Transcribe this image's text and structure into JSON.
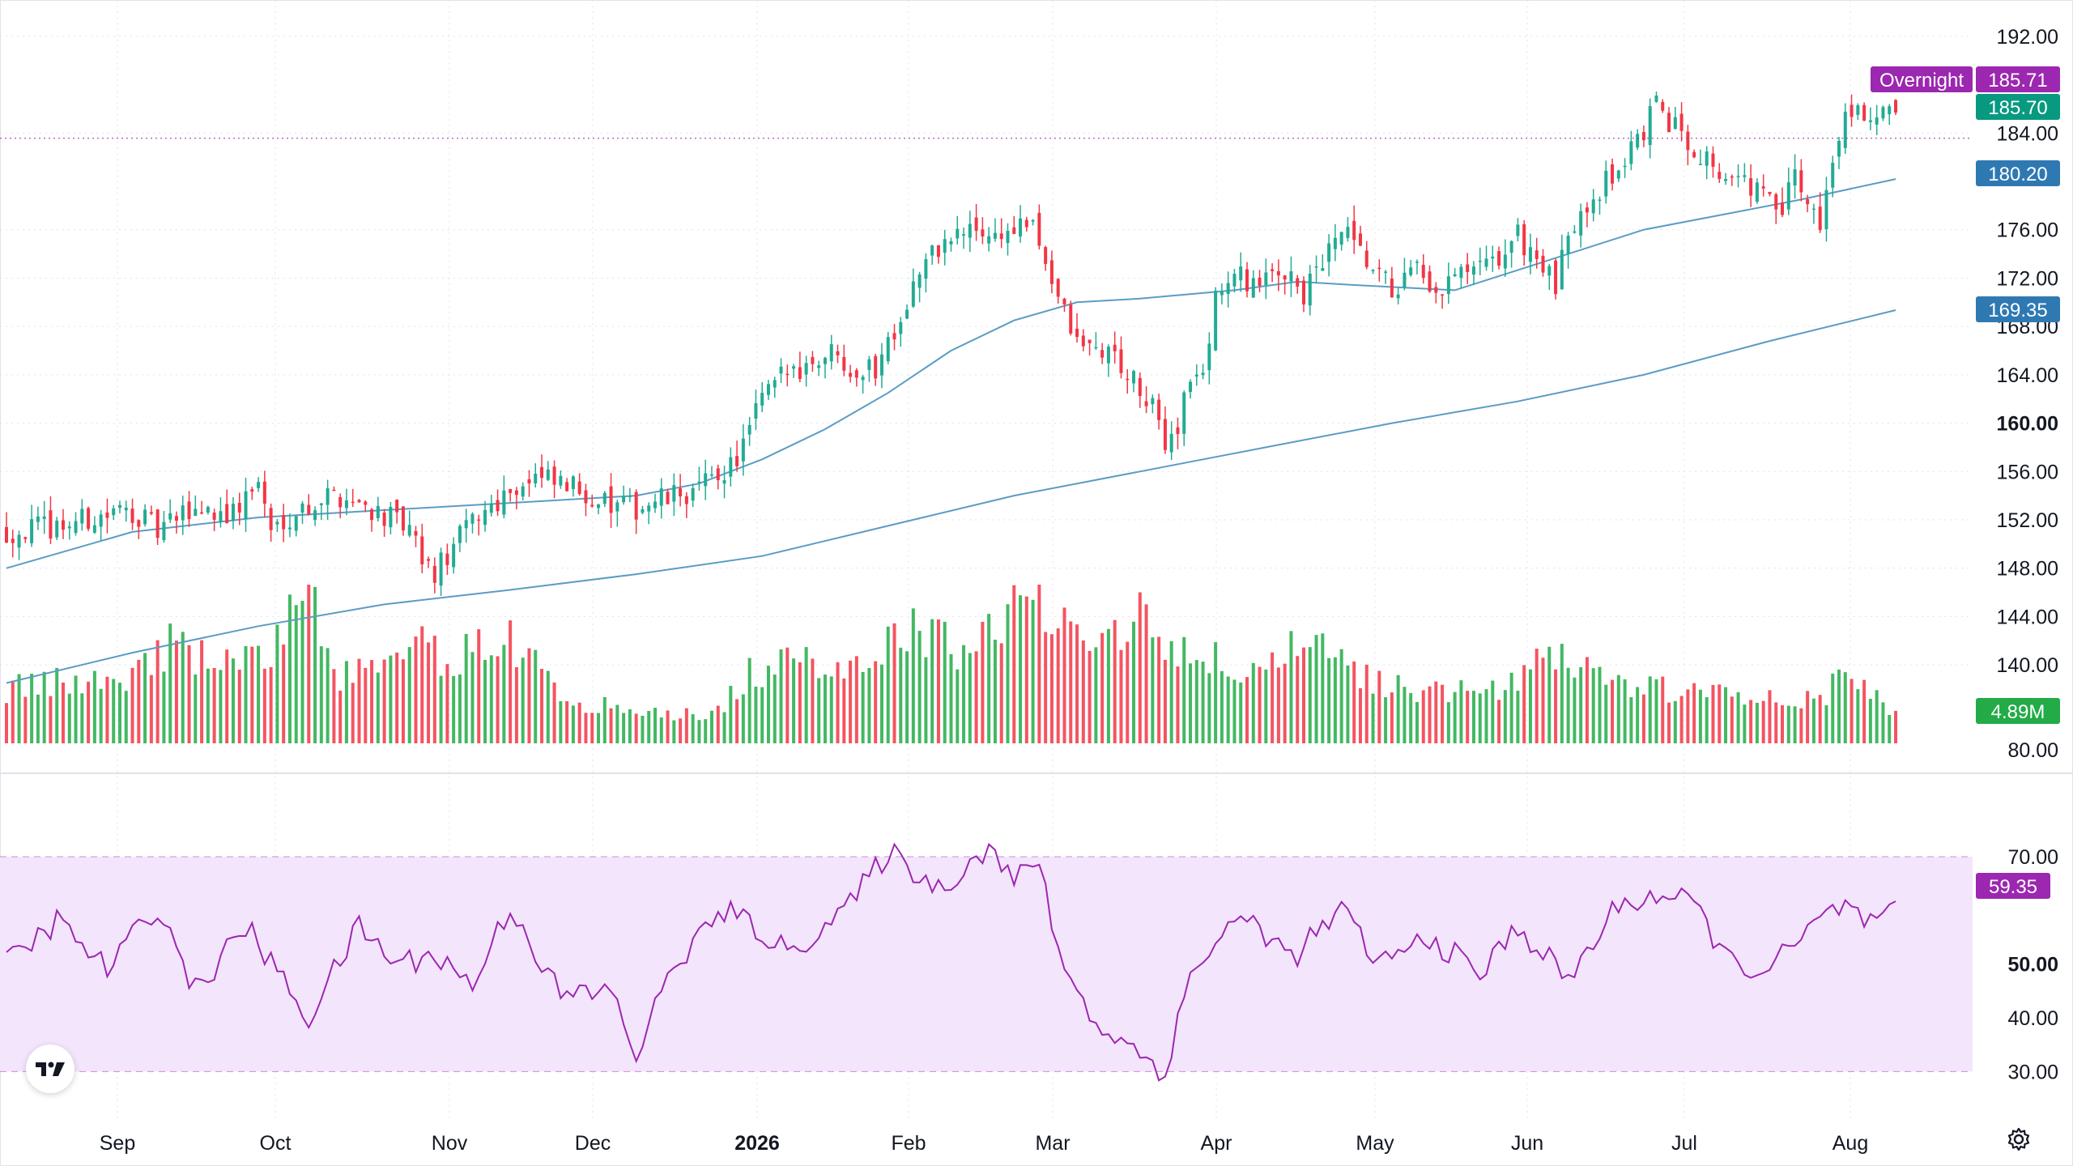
{
  "chart_data": [
    {
      "type": "candlestick",
      "x_months": [
        "Sep",
        "Oct",
        "Nov",
        "Dec",
        "2026",
        "Feb",
        "Mar",
        "Apr",
        "May",
        "Jun",
        "Jul",
        "Aug"
      ],
      "y_ticks": [
        {
          "value": 192,
          "label": "192.00"
        },
        {
          "value": 184,
          "label": "184.00"
        },
        {
          "value": 176,
          "label": "176.00"
        },
        {
          "value": 172,
          "label": "172.00"
        },
        {
          "value": 168,
          "label": "168.00"
        },
        {
          "value": 164,
          "label": "164.00"
        },
        {
          "value": 160,
          "label": "160.00"
        },
        {
          "value": 156,
          "label": "156.00"
        },
        {
          "value": 152,
          "label": "152.00"
        },
        {
          "value": 148,
          "label": "148.00"
        },
        {
          "value": 144,
          "label": "144.00"
        },
        {
          "value": 140,
          "label": "140.00"
        }
      ],
      "ylim": [
        139,
        193
      ],
      "grid": true,
      "close_path": [
        [
          0,
          151.0
        ],
        [
          8,
          151.5
        ],
        [
          20,
          152.8
        ],
        [
          24,
          151.0
        ],
        [
          30,
          153.0
        ],
        [
          36,
          152.5
        ],
        [
          40,
          155.2
        ],
        [
          42,
          151.0
        ],
        [
          44,
          152.2
        ],
        [
          52,
          154.2
        ],
        [
          58,
          153.0
        ],
        [
          64,
          151.0
        ],
        [
          66,
          148.5
        ],
        [
          68,
          147.5
        ],
        [
          74,
          152.0
        ],
        [
          80,
          154.6
        ],
        [
          84,
          155.4
        ],
        [
          92,
          154.3
        ],
        [
          96,
          153.0
        ],
        [
          100,
          153.0
        ],
        [
          110,
          154.5
        ],
        [
          116,
          157.0
        ],
        [
          118,
          159.5
        ],
        [
          120,
          162.0
        ],
        [
          124,
          164.3
        ],
        [
          128,
          165.2
        ],
        [
          132,
          166.2
        ],
        [
          134,
          164.5
        ],
        [
          138,
          164.5
        ],
        [
          140,
          167.0
        ],
        [
          142,
          169.0
        ],
        [
          145,
          172.5
        ],
        [
          148,
          174.5
        ],
        [
          151,
          175.5
        ],
        [
          154,
          176.0
        ],
        [
          157,
          175.5
        ],
        [
          160,
          176.0
        ],
        [
          162,
          176.5
        ],
        [
          164,
          175.0
        ],
        [
          166,
          172.0
        ],
        [
          168,
          169.0
        ],
        [
          170,
          166.5
        ],
        [
          174,
          166.0
        ],
        [
          176,
          165.5
        ],
        [
          178,
          164.0
        ],
        [
          182,
          161.0
        ],
        [
          184,
          158.5
        ],
        [
          186,
          160.0
        ],
        [
          188,
          164.0
        ],
        [
          190,
          163.5
        ],
        [
          192,
          171.0
        ],
        [
          196,
          172.0
        ],
        [
          200,
          171.5
        ],
        [
          204,
          173.0
        ],
        [
          206,
          170.5
        ],
        [
          208,
          172.5
        ],
        [
          210,
          174.0
        ],
        [
          212,
          176.0
        ],
        [
          216,
          173.0
        ],
        [
          220,
          171.0
        ],
        [
          224,
          172.5
        ],
        [
          226,
          170.0
        ],
        [
          230,
          172.0
        ],
        [
          236,
          173.0
        ],
        [
          240,
          175.5
        ],
        [
          244,
          173.0
        ],
        [
          246,
          171.0
        ],
        [
          248,
          175.5
        ],
        [
          250,
          178.0
        ],
        [
          256,
          181.0
        ],
        [
          262,
          186.0
        ],
        [
          266,
          184.0
        ],
        [
          270,
          182.0
        ],
        [
          274,
          180.0
        ],
        [
          278,
          179.5
        ],
        [
          282,
          177.0
        ],
        [
          284,
          181.0
        ],
        [
          286,
          178.0
        ],
        [
          288,
          177.0
        ],
        [
          290,
          181.0
        ],
        [
          292,
          186.0
        ],
        [
          294,
          186.5
        ],
        [
          296,
          185.0
        ],
        [
          300,
          185.7
        ]
      ],
      "up_color": "#22ab94",
      "down_color": "#f23645"
    },
    {
      "type": "line",
      "series": [
        {
          "values": [
            [
              0,
              148.0
            ],
            [
              20,
              151.0
            ],
            [
              40,
              152.2
            ],
            [
              60,
              152.8
            ],
            [
              80,
              153.4
            ],
            [
              100,
              154.0
            ],
            [
              110,
              155.0
            ],
            [
              120,
              157.0
            ],
            [
              130,
              159.5
            ],
            [
              140,
              162.5
            ],
            [
              150,
              166.0
            ],
            [
              160,
              168.5
            ],
            [
              170,
              170.0
            ],
            [
              180,
              170.3
            ],
            [
              195,
              171.0
            ],
            [
              205,
              171.7
            ],
            [
              215,
              171.4
            ],
            [
              230,
              171.0
            ],
            [
              245,
              173.5
            ],
            [
              260,
              176.0
            ],
            [
              275,
              177.5
            ],
            [
              285,
              178.5
            ],
            [
              300,
              180.2
            ]
          ],
          "color": "#5b9cc4"
        },
        {
          "values": [
            [
              0,
              138.5
            ],
            [
              20,
              141.0
            ],
            [
              40,
              143.2
            ],
            [
              60,
              145.0
            ],
            [
              80,
              146.2
            ],
            [
              100,
              147.5
            ],
            [
              120,
              149.0
            ],
            [
              140,
              151.5
            ],
            [
              160,
              154.0
            ],
            [
              180,
              156.0
            ],
            [
              200,
              158.0
            ],
            [
              220,
              160.0
            ],
            [
              240,
              161.8
            ],
            [
              260,
              164.0
            ],
            [
              280,
              166.8
            ],
            [
              300,
              169.35
            ]
          ],
          "color": "#5b9cc4"
        }
      ]
    },
    {
      "type": "bar",
      "name": "volume",
      "last_value_label": "4.89M",
      "hints": [
        [
          0,
          0.35
        ],
        [
          10,
          0.4
        ],
        [
          20,
          0.45
        ],
        [
          26,
          0.65
        ],
        [
          30,
          0.55
        ],
        [
          40,
          0.52
        ],
        [
          48,
          1.0
        ],
        [
          52,
          0.45
        ],
        [
          60,
          0.48
        ],
        [
          66,
          0.62
        ],
        [
          70,
          0.55
        ],
        [
          80,
          0.7
        ],
        [
          88,
          0.3
        ],
        [
          100,
          0.2
        ],
        [
          112,
          0.18
        ],
        [
          118,
          0.45
        ],
        [
          126,
          0.52
        ],
        [
          136,
          0.55
        ],
        [
          144,
          0.75
        ],
        [
          150,
          0.62
        ],
        [
          160,
          0.85
        ],
        [
          166,
          0.95
        ],
        [
          172,
          0.72
        ],
        [
          180,
          0.82
        ],
        [
          190,
          0.55
        ],
        [
          200,
          0.45
        ],
        [
          206,
          0.65
        ],
        [
          214,
          0.45
        ],
        [
          220,
          0.38
        ],
        [
          230,
          0.32
        ],
        [
          240,
          0.38
        ],
        [
          246,
          0.62
        ],
        [
          256,
          0.38
        ],
        [
          270,
          0.32
        ],
        [
          280,
          0.3
        ],
        [
          288,
          0.3
        ],
        [
          292,
          0.42
        ],
        [
          296,
          0.3
        ],
        [
          300,
          0.2
        ]
      ]
    },
    {
      "type": "line",
      "name": "rsi",
      "y_ticks": [
        {
          "value": 70,
          "label": "70.00"
        },
        {
          "value": 50,
          "label": "50.00"
        },
        {
          "value": 40,
          "label": "40.00"
        },
        {
          "value": 30,
          "label": "30.00"
        }
      ],
      "band": [
        30,
        70
      ],
      "ylim": [
        29,
        78
      ],
      "hints": [
        [
          0,
          50
        ],
        [
          8,
          58
        ],
        [
          16,
          49
        ],
        [
          24,
          61
        ],
        [
          30,
          45
        ],
        [
          38,
          57
        ],
        [
          48,
          40
        ],
        [
          56,
          57
        ],
        [
          62,
          50
        ],
        [
          68,
          52
        ],
        [
          74,
          46
        ],
        [
          80,
          61
        ],
        [
          88,
          44
        ],
        [
          96,
          45
        ],
        [
          100,
          33
        ],
        [
          106,
          50
        ],
        [
          114,
          60
        ],
        [
          120,
          56
        ],
        [
          124,
          52
        ],
        [
          134,
          61
        ],
        [
          140,
          71
        ],
        [
          148,
          64
        ],
        [
          156,
          72
        ],
        [
          160,
          65
        ],
        [
          164,
          70
        ],
        [
          166,
          56
        ],
        [
          172,
          40
        ],
        [
          178,
          35
        ],
        [
          184,
          30
        ],
        [
          188,
          48
        ],
        [
          194,
          57
        ],
        [
          198,
          58
        ],
        [
          204,
          51
        ],
        [
          212,
          60
        ],
        [
          218,
          50
        ],
        [
          226,
          55
        ],
        [
          234,
          48
        ],
        [
          240,
          57
        ],
        [
          248,
          47
        ],
        [
          256,
          61
        ],
        [
          262,
          63
        ],
        [
          268,
          61
        ],
        [
          274,
          50
        ],
        [
          280,
          49
        ],
        [
          288,
          58
        ],
        [
          292,
          61
        ],
        [
          296,
          57
        ],
        [
          300,
          59.35
        ]
      ],
      "color": "#9c27b0",
      "last_value_label": "59.35"
    }
  ],
  "overlay": {
    "axis_partial_label": "80.00",
    "overnight_label": "Overnight",
    "overnight_value": "185.71",
    "last_price_label": "185.70",
    "ma_fast_label": "180.20",
    "ma_slow_label": "169.35",
    "colors": {
      "overnight": "#9c27b0",
      "last_price": "#089981",
      "ma": "#2f79b3",
      "volume_tag": "#22ab47",
      "rsi_tag": "#9c27b0",
      "rsi_band": "#f3e5fc"
    }
  },
  "icons": {
    "logo": "tradingview-logo",
    "settings": "settings-gear-icon"
  }
}
